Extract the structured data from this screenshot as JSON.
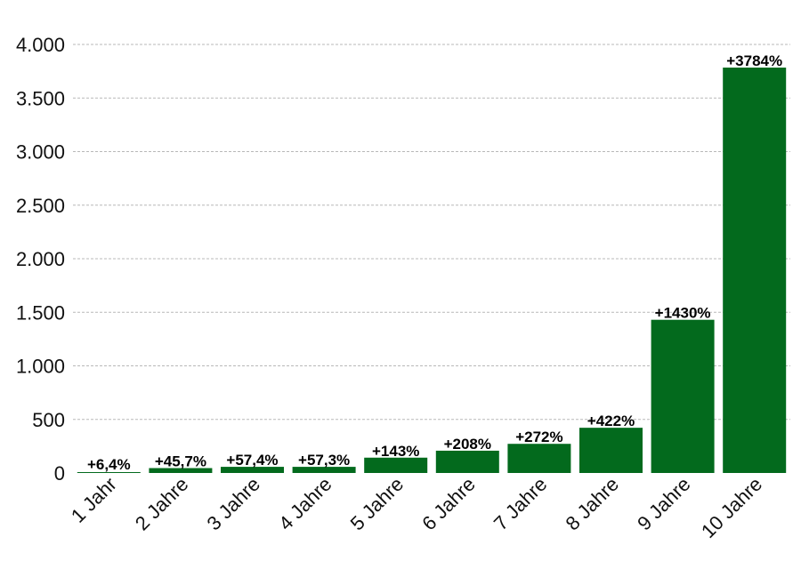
{
  "chart_data": {
    "type": "bar",
    "categories": [
      "1 Jahr",
      "2 Jahre",
      "3 Jahre",
      "4 Jahre",
      "5 Jahre",
      "6 Jahre",
      "7 Jahre",
      "8 Jahre",
      "9 Jahre",
      "10 Jahre"
    ],
    "values": [
      6.4,
      45.7,
      57.4,
      57.3,
      143,
      208,
      272,
      422,
      1430,
      3784
    ],
    "data_labels": [
      "+6,4%",
      "+45,7%",
      "+57,4%",
      "+57,3%",
      "+143%",
      "+208%",
      "+272%",
      "+422%",
      "+1430%",
      "+3784%"
    ],
    "title": "",
    "xlabel": "",
    "ylabel": "",
    "ylim": [
      0,
      4000
    ],
    "yticks": [
      0,
      500,
      1000,
      1500,
      2000,
      2500,
      3000,
      3500,
      4000
    ],
    "ytick_labels": [
      "0",
      "500",
      "1.000",
      "1.500",
      "2.000",
      "2.500",
      "3.000",
      "3.500",
      "4.000"
    ],
    "grid": true,
    "legend": "none",
    "bar_color": "#036a1d"
  }
}
